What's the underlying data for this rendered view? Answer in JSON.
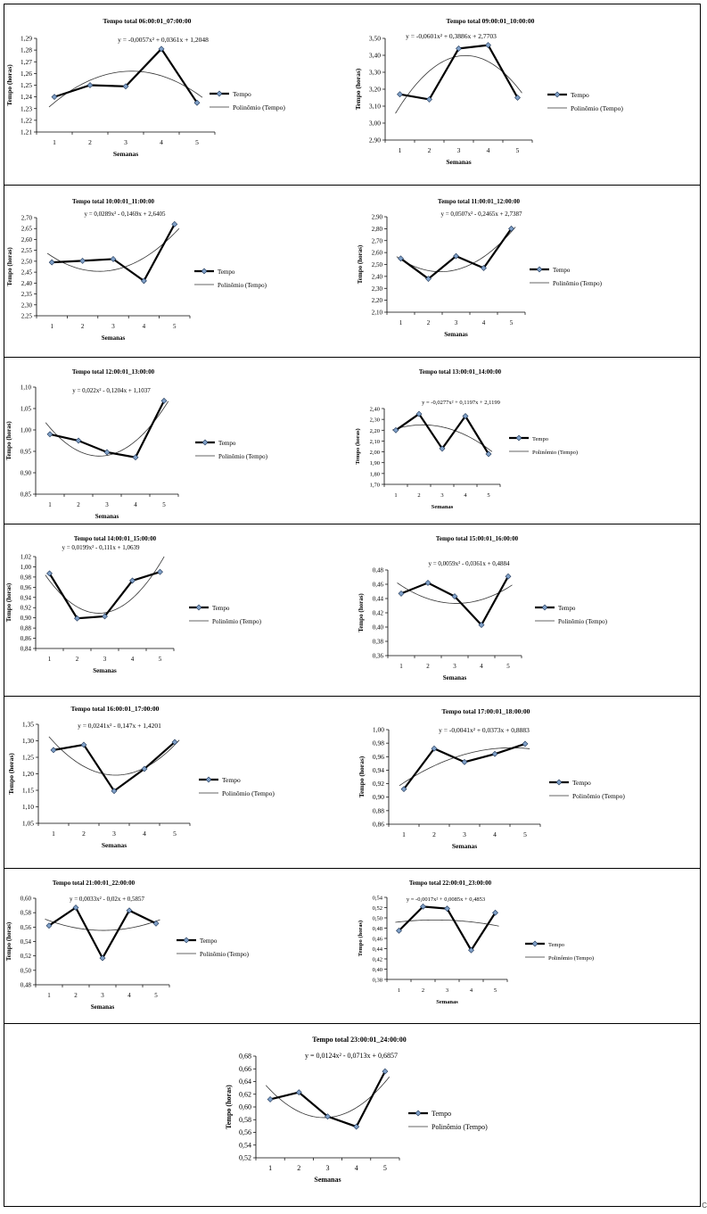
{
  "common": {
    "xlabel": "Semanas",
    "ylabel": "Tempo (horas)",
    "legend_series": "Tempo",
    "legend_trend": "Polinômio (Tempo)",
    "categories": [
      "1",
      "2",
      "3",
      "4",
      "5"
    ],
    "series_color": "#000000",
    "marker_color": "#7f9fc6",
    "trend_color": "#333333"
  },
  "stray_mark": "C",
  "chart_data": [
    {
      "type": "line",
      "title": "Tempo total  06:00:01_07:00:00",
      "equation": "y = -0,0057x² + 0,0361x + 1,2048",
      "xlabel": "Semanas",
      "ylabel": "Tempo (horas)",
      "categories": [
        "1",
        "2",
        "3",
        "4",
        "5"
      ],
      "series": [
        {
          "name": "Tempo",
          "values": [
            1.24,
            1.25,
            1.249,
            1.281,
            1.235
          ]
        }
      ],
      "trendline": {
        "name": "Polinômio (Tempo)",
        "coefficients": [
          -0.0057,
          0.0361,
          1.2048
        ]
      },
      "ylim": [
        1.21,
        1.29
      ],
      "yticks": [
        "1,21",
        "1,22",
        "1,23",
        "1,24",
        "1,25",
        "1,26",
        "1,27",
        "1,28",
        "1,29"
      ],
      "legend": "right"
    },
    {
      "type": "line",
      "title": "Tempo total  09:00:01_10:00:00",
      "equation": "y = -0,0601x² + 0,3886x + 2,7703",
      "xlabel": "Semanas",
      "ylabel": "Tempo (horas)",
      "categories": [
        "1",
        "2",
        "3",
        "4",
        "5"
      ],
      "series": [
        {
          "name": "Tempo",
          "values": [
            3.17,
            3.14,
            3.44,
            3.46,
            3.15
          ]
        }
      ],
      "trendline": {
        "name": "Polinômio (Tempo)",
        "coefficients": [
          -0.0601,
          0.3886,
          2.7703
        ]
      },
      "ylim": [
        2.9,
        3.5
      ],
      "yticks": [
        "2,90",
        "3,00",
        "3,10",
        "3,20",
        "3,30",
        "3,40",
        "3,50"
      ],
      "legend": "right"
    },
    {
      "type": "line",
      "title": "Tempo total  10:00:01_11:00:00",
      "equation": "y = 0,0289x² - 0,1469x + 2,6405",
      "xlabel": "Semanas",
      "ylabel": "Tempo (horas)",
      "categories": [
        "1",
        "2",
        "3",
        "4",
        "5"
      ],
      "series": [
        {
          "name": "Tempo",
          "values": [
            2.495,
            2.502,
            2.51,
            2.41,
            2.67
          ]
        }
      ],
      "trendline": {
        "name": "Polinômio (Tempo)",
        "coefficients": [
          0.0289,
          -0.1469,
          2.6405
        ]
      },
      "ylim": [
        2.25,
        2.7
      ],
      "yticks": [
        "2,25",
        "2,30",
        "2,35",
        "2,40",
        "2,45",
        "2,50",
        "2,55",
        "2,60",
        "2,65",
        "2,70"
      ],
      "legend": "right"
    },
    {
      "type": "line",
      "title": "Tempo total  11:00:01_12:00:00",
      "equation": "y = 0,0507x² - 0,2465x + 2,7387",
      "xlabel": "Semanas",
      "ylabel": "Tempo (horas)",
      "categories": [
        "1",
        "2",
        "3",
        "4",
        "5"
      ],
      "series": [
        {
          "name": "Tempo",
          "values": [
            2.55,
            2.38,
            2.57,
            2.47,
            2.8
          ]
        }
      ],
      "trendline": {
        "name": "Polinômio (Tempo)",
        "coefficients": [
          0.0507,
          -0.2465,
          2.7387
        ]
      },
      "ylim": [
        2.1,
        2.9
      ],
      "yticks": [
        "2,10",
        "2,20",
        "2,30",
        "2,40",
        "2,50",
        "2,60",
        "2,70",
        "2,80",
        "2,90"
      ],
      "legend": "right"
    },
    {
      "type": "line",
      "title": "Tempo total  12:00:01_13:00:00",
      "equation": "y = 0,022x² - 0,1204x + 1,1037",
      "xlabel": "Semanas",
      "ylabel": "Tempo (horas)",
      "categories": [
        "1",
        "2",
        "3",
        "4",
        "5"
      ],
      "series": [
        {
          "name": "Tempo",
          "values": [
            0.99,
            0.975,
            0.948,
            0.936,
            1.068
          ]
        }
      ],
      "trendline": {
        "name": "Polinômio (Tempo)",
        "coefficients": [
          0.022,
          -0.1204,
          1.1037
        ]
      },
      "ylim": [
        0.85,
        1.1
      ],
      "yticks": [
        "0,85",
        "0,90",
        "0,95",
        "1,00",
        "1,05",
        "1,10"
      ],
      "legend": "right"
    },
    {
      "type": "line",
      "title": "Tempo total  13:00:01_14:00:00",
      "equation": "y = -0,0277x² + 0,1197x + 2,1199",
      "xlabel": "Semanas",
      "ylabel": "Tempo (horas)",
      "categories": [
        "1",
        "2",
        "3",
        "4",
        "5"
      ],
      "series": [
        {
          "name": "Tempo",
          "values": [
            2.2,
            2.35,
            2.03,
            2.33,
            1.98
          ]
        }
      ],
      "trendline": {
        "name": "Polinômio (Tempo)",
        "coefficients": [
          -0.0277,
          0.1197,
          2.1199
        ]
      },
      "ylim": [
        1.7,
        2.4
      ],
      "yticks": [
        "1,70",
        "1,80",
        "1,90",
        "2,00",
        "2,10",
        "2,20",
        "2,30",
        "2,40"
      ],
      "legend": "right"
    },
    {
      "type": "line",
      "title": "Tempo total  14:00:01_15:00:00",
      "equation": "y = 0,0199x² - 0,111x + 1,0639",
      "xlabel": "Semanas",
      "ylabel": "Tempo (horas)",
      "categories": [
        "1",
        "2",
        "3",
        "4",
        "5"
      ],
      "series": [
        {
          "name": "Tempo",
          "values": [
            0.987,
            0.899,
            0.903,
            0.973,
            0.99
          ]
        }
      ],
      "trendline": {
        "name": "Polinômio (Tempo)",
        "coefficients": [
          0.0199,
          -0.111,
          1.0639
        ]
      },
      "ylim": [
        0.84,
        1.02
      ],
      "yticks": [
        "0,84",
        "0,86",
        "0,88",
        "0,90",
        "0,92",
        "0,94",
        "0,96",
        "0,98",
        "1,00",
        "1,02"
      ],
      "legend": "right"
    },
    {
      "type": "line",
      "title": "Tempo total  15:00:01_16:00:00",
      "equation": "y = 0,0059x² - 0,0361x + 0,4884",
      "xlabel": "Semanas",
      "ylabel": "Tempo (horas)",
      "categories": [
        "1",
        "2",
        "3",
        "4",
        "5"
      ],
      "series": [
        {
          "name": "Tempo",
          "values": [
            0.447,
            0.462,
            0.443,
            0.403,
            0.471
          ]
        }
      ],
      "trendline": {
        "name": "Polinômio (Tempo)",
        "coefficients": [
          0.0059,
          -0.0361,
          0.4884
        ]
      },
      "ylim": [
        0.36,
        0.48
      ],
      "yticks": [
        "0,36",
        "0,38",
        "0,40",
        "0,42",
        "0,44",
        "0,46",
        "0,48"
      ],
      "legend": "right"
    },
    {
      "type": "line",
      "title": "Tempo total  16:00:01_17:00:00",
      "equation": "y = 0,0241x² - 0,147x + 1,4201",
      "xlabel": "Semanas",
      "ylabel": "Tempo (horas)",
      "categories": [
        "1",
        "2",
        "3",
        "4",
        "5"
      ],
      "series": [
        {
          "name": "Tempo",
          "values": [
            1.272,
            1.288,
            1.148,
            1.215,
            1.296
          ]
        }
      ],
      "trendline": {
        "name": "Polinômio (Tempo)",
        "coefficients": [
          0.0241,
          -0.147,
          1.4201
        ]
      },
      "ylim": [
        1.05,
        1.35
      ],
      "yticks": [
        "1,05",
        "1,10",
        "1,15",
        "1,20",
        "1,25",
        "1,30",
        "1,35"
      ],
      "legend": "right"
    },
    {
      "type": "line",
      "title": "Tempo total  17:00:01_18:00:00",
      "equation": "y = -0,0041x² + 0,0373x + 0,8883",
      "xlabel": "Semanas",
      "ylabel": "Tempo (horas)",
      "categories": [
        "1",
        "2",
        "3",
        "4",
        "5"
      ],
      "series": [
        {
          "name": "Tempo",
          "values": [
            0.912,
            0.972,
            0.952,
            0.964,
            0.979
          ]
        }
      ],
      "trendline": {
        "name": "Polinômio (Tempo)",
        "coefficients": [
          -0.0041,
          0.0373,
          0.8883
        ]
      },
      "ylim": [
        0.86,
        1.0
      ],
      "yticks": [
        "0,86",
        "0,88",
        "0,90",
        "0,92",
        "0,94",
        "0,96",
        "0,98",
        "1,00"
      ],
      "legend": "right"
    },
    {
      "type": "line",
      "title": "Tempo total  21:00:01_22:00:00",
      "equation": "y = 0,0033x² - 0,02x + 0,5857",
      "xlabel": "Semanas",
      "ylabel": "Tempo (horas)",
      "categories": [
        "1",
        "2",
        "3",
        "4",
        "5"
      ],
      "series": [
        {
          "name": "Tempo",
          "values": [
            0.562,
            0.587,
            0.517,
            0.583,
            0.565
          ]
        }
      ],
      "trendline": {
        "name": "Polinômio (Tempo)",
        "coefficients": [
          0.0033,
          -0.02,
          0.5857
        ]
      },
      "ylim": [
        0.48,
        0.6
      ],
      "yticks": [
        "0,48",
        "0,50",
        "0,52",
        "0,54",
        "0,56",
        "0,58",
        "0,60"
      ],
      "legend": "right"
    },
    {
      "type": "line",
      "title": "Tempo total  22:00:01_23:00:00",
      "equation": "y = -0,0017x² + 0,0085x + 0,4853",
      "xlabel": "Semanas",
      "ylabel": "Tempo (horas)",
      "categories": [
        "1",
        "2",
        "3",
        "4",
        "5"
      ],
      "series": [
        {
          "name": "Tempo",
          "values": [
            0.475,
            0.522,
            0.518,
            0.437,
            0.51
          ]
        }
      ],
      "trendline": {
        "name": "Polinômio (Tempo)",
        "coefficients": [
          -0.0017,
          0.0085,
          0.4853
        ]
      },
      "ylim": [
        0.38,
        0.54
      ],
      "yticks": [
        "0,38",
        "0,40",
        "0,42",
        "0,44",
        "0,46",
        "0,48",
        "0,50",
        "0,52",
        "0,54"
      ],
      "legend": "right"
    },
    {
      "type": "line",
      "title": "Tempo total  23:00:01_24:00:00",
      "equation": "y = 0,0124x² - 0,0713x + 0,6857",
      "xlabel": "Semanas",
      "ylabel": "Tempo (horas)",
      "categories": [
        "1",
        "2",
        "3",
        "4",
        "5"
      ],
      "series": [
        {
          "name": "Tempo",
          "values": [
            0.612,
            0.623,
            0.585,
            0.569,
            0.656
          ]
        }
      ],
      "trendline": {
        "name": "Polinômio (Tempo)",
        "coefficients": [
          0.0124,
          -0.0713,
          0.6857
        ]
      },
      "ylim": [
        0.52,
        0.68
      ],
      "yticks": [
        "0,52",
        "0,54",
        "0,56",
        "0,58",
        "0,60",
        "0,62",
        "0,64",
        "0,66",
        "0,68"
      ],
      "legend": "right"
    }
  ]
}
